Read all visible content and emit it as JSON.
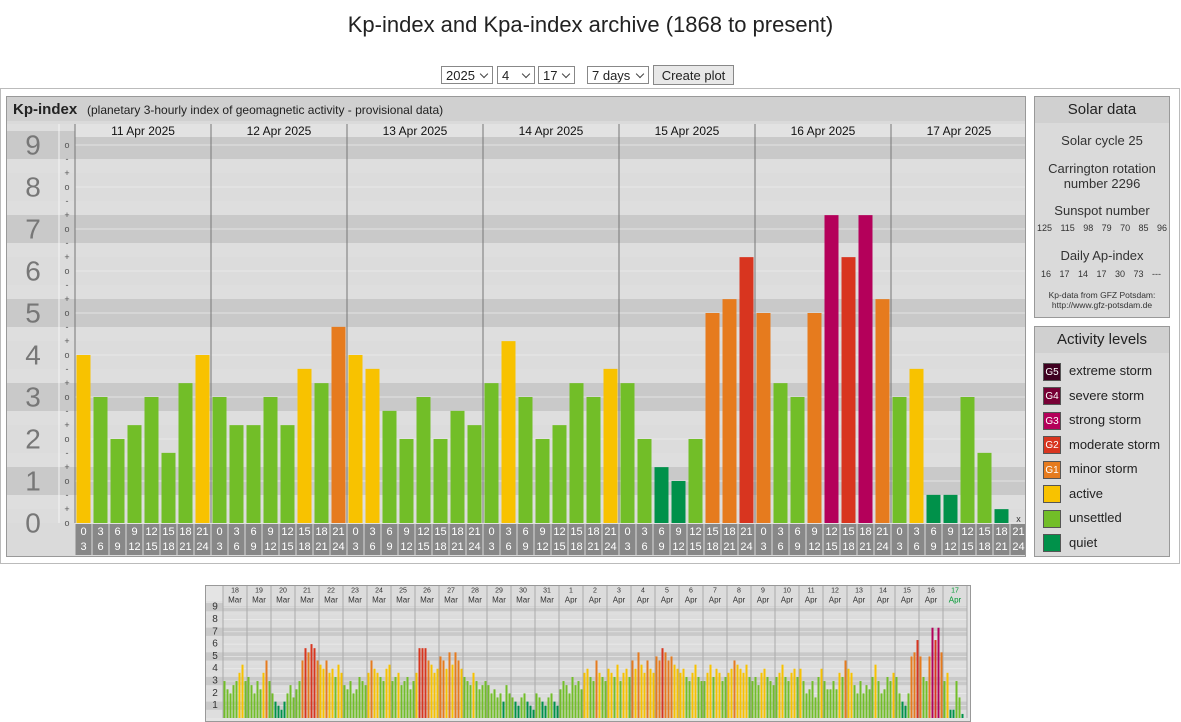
{
  "title": "Kp-index and Kpa-index archive (1868 to present)",
  "controls": {
    "year": "2025",
    "month": "4",
    "day": "17",
    "span": "7 days",
    "button": "Create plot"
  },
  "chart_data": [
    {
      "type": "bar",
      "title": "Kp-index",
      "subtitle": "(planetary 3-hourly index of geomagnetic activity - provisional data)",
      "days": [
        "11 Apr 2025",
        "12 Apr 2025",
        "13 Apr 2025",
        "14 Apr 2025",
        "15 Apr 2025",
        "16 Apr 2025",
        "17 Apr 2025"
      ],
      "hour_labels": [
        [
          "0",
          "3"
        ],
        [
          "3",
          "6"
        ],
        [
          "6",
          "9"
        ],
        [
          "9",
          "12"
        ],
        [
          "12",
          "15"
        ],
        [
          "15",
          "18"
        ],
        [
          "18",
          "21"
        ],
        [
          "21",
          "24"
        ]
      ],
      "values": [
        4,
        3,
        2,
        2.33,
        3,
        1.67,
        3.33,
        4,
        3,
        2.33,
        2.33,
        3,
        2.33,
        3.67,
        3.33,
        4.67,
        4,
        3.67,
        2.67,
        2,
        3,
        2,
        2.67,
        2.33,
        3.33,
        4.33,
        3,
        2,
        2.33,
        3.33,
        3,
        3.67,
        3.33,
        2,
        1.33,
        1,
        2,
        5,
        5.33,
        6.33,
        5,
        3.33,
        3,
        5,
        7.33,
        6.33,
        7.33,
        5.33,
        3,
        3.67,
        0.67,
        0.67,
        3,
        1.67,
        0.33,
        null
      ],
      "colors": [
        "#f8c200",
        "#72be28",
        "#72be28",
        "#72be28",
        "#72be28",
        "#72be28",
        "#72be28",
        "#f8c200",
        "#72be28",
        "#72be28",
        "#72be28",
        "#72be28",
        "#72be28",
        "#f8c200",
        "#72be28",
        "#e67b1e",
        "#f8c200",
        "#f8c200",
        "#72be28",
        "#72be28",
        "#72be28",
        "#72be28",
        "#72be28",
        "#72be28",
        "#72be28",
        "#f8c200",
        "#72be28",
        "#72be28",
        "#72be28",
        "#72be28",
        "#72be28",
        "#f8c200",
        "#72be28",
        "#72be28",
        "#00914a",
        "#00914a",
        "#72be28",
        "#e67b1e",
        "#e67b1e",
        "#d8351f",
        "#e67b1e",
        "#72be28",
        "#72be28",
        "#e67b1e",
        "#b4005a",
        "#d8351f",
        "#b4005a",
        "#e67b1e",
        "#72be28",
        "#f8c200",
        "#00914a",
        "#00914a",
        "#72be28",
        "#72be28",
        "#00914a",
        null
      ],
      "missing_label": "x",
      "ylim": [
        0,
        9.5
      ],
      "yticks": [
        0,
        1,
        2,
        3,
        4,
        5,
        6,
        7,
        8,
        9
      ],
      "minor_tick_labels": [
        "-",
        "o",
        "+"
      ],
      "grid": true
    },
    {
      "type": "bar",
      "days": [
        "18",
        "19",
        "20",
        "21",
        "22",
        "23",
        "24",
        "25",
        "26",
        "27",
        "28",
        "29",
        "30",
        "31",
        "1",
        "2",
        "3",
        "4",
        "5",
        "6",
        "7",
        "8",
        "9",
        "10",
        "11",
        "12",
        "13",
        "14",
        "15",
        "16",
        "17"
      ],
      "months": [
        "Mar",
        "Mar",
        "Mar",
        "Mar",
        "Mar",
        "Mar",
        "Mar",
        "Mar",
        "Mar",
        "Mar",
        "Mar",
        "Mar",
        "Mar",
        "Mar",
        "Apr",
        "Apr",
        "Apr",
        "Apr",
        "Apr",
        "Apr",
        "Apr",
        "Apr",
        "Apr",
        "Apr",
        "Apr",
        "Apr",
        "Apr",
        "Apr",
        "Apr",
        "Apr",
        "Apr"
      ],
      "current_day_color": "#009933",
      "values": [
        3,
        2.33,
        2,
        2.67,
        3,
        3.67,
        4.33,
        3,
        3.33,
        2.67,
        2,
        3,
        2.33,
        3.67,
        4.67,
        3,
        2,
        1.33,
        1,
        0.67,
        1.33,
        2,
        2.67,
        1.67,
        2.33,
        3,
        4.67,
        5.67,
        5.33,
        6,
        5.67,
        4.67,
        4.33,
        4,
        4.67,
        3.67,
        4,
        3.33,
        4.33,
        3.67,
        2.67,
        2.33,
        3,
        2,
        2.33,
        3.33,
        3,
        2.67,
        3.67,
        4.67,
        4,
        3.67,
        3.33,
        3,
        4,
        4.33,
        3,
        3.33,
        3.67,
        2.67,
        3,
        3.33,
        2.33,
        3,
        3.67,
        5.67,
        5.67,
        5.67,
        4.67,
        4.33,
        3.67,
        4,
        5,
        4.67,
        4,
        5.33,
        4.33,
        5.33,
        4.67,
        4,
        3.33,
        3,
        2.67,
        3.67,
        3,
        2.33,
        2.67,
        3,
        2.67,
        2,
        2.33,
        1.67,
        2,
        1.33,
        2.67,
        2,
        1.67,
        1.33,
        1,
        1.67,
        2,
        1.33,
        1,
        0.67,
        2,
        1.67,
        1.33,
        1,
        1.67,
        2,
        1.33,
        1,
        2.33,
        3,
        2.67,
        2,
        3.33,
        2.67,
        3,
        2.33,
        3.67,
        4,
        3.33,
        3,
        4.67,
        3.67,
        3.33,
        3,
        4,
        3.67,
        3.33,
        4.33,
        3,
        3.67,
        4,
        3.33,
        4.67,
        4,
        5.33,
        4.33,
        3.67,
        4.67,
        4,
        3.67,
        5,
        4.67,
        5.67,
        5.33,
        4.67,
        5,
        4.33,
        4,
        3.67,
        4,
        3.33,
        3,
        3.67,
        4.33,
        3.33,
        3,
        3,
        3.67,
        4.33,
        3.33,
        4,
        3.67,
        3,
        3.33,
        3.67,
        4,
        4.67,
        4.33,
        4,
        3.67,
        4.33,
        3.33,
        3,
        3.33,
        2.67,
        3.67,
        4,
        3.33,
        3,
        2.67,
        3.33,
        3.67,
        4.33,
        3.33,
        3,
        3.67,
        4,
        3.33,
        4,
        3,
        2,
        2.33,
        3,
        1.67,
        3.33,
        4,
        3,
        2.33,
        2.33,
        3,
        2.33,
        3.67,
        3.33,
        4.67,
        4,
        3.67,
        2.67,
        2,
        3,
        2,
        2.67,
        2.33,
        3.33,
        4.33,
        3,
        2,
        2.33,
        3.33,
        3,
        3.67,
        3.33,
        2,
        1.33,
        1,
        2,
        5,
        5.33,
        6.33,
        5,
        3.33,
        3,
        5,
        7.33,
        6.33,
        7.33,
        5.33,
        3,
        3.67,
        0.67,
        0.67,
        3,
        1.67,
        0.33,
        null
      ],
      "colors": [
        "#72be28",
        "#72be28",
        "#72be28",
        "#72be28",
        "#72be28",
        "#f8c200",
        "#f8c200",
        "#72be28",
        "#72be28",
        "#72be28",
        "#72be28",
        "#72be28",
        "#72be28",
        "#f8c200",
        "#e67b1e",
        "#72be28",
        "#72be28",
        "#00914a",
        "#00914a",
        "#00914a",
        "#00914a",
        "#72be28",
        "#72be28",
        "#72be28",
        "#72be28",
        "#72be28",
        "#e67b1e",
        "#d8351f",
        "#e67b1e",
        "#d8351f",
        "#d8351f",
        "#e67b1e",
        "#f8c200",
        "#f8c200",
        "#e67b1e",
        "#f8c200",
        "#f8c200",
        "#72be28",
        "#f8c200",
        "#f8c200",
        "#72be28",
        "#72be28",
        "#72be28",
        "#72be28",
        "#72be28",
        "#72be28",
        "#72be28",
        "#72be28",
        "#f8c200",
        "#e67b1e",
        "#f8c200",
        "#f8c200",
        "#72be28",
        "#72be28",
        "#f8c200",
        "#f8c200",
        "#72be28",
        "#72be28",
        "#f8c200",
        "#72be28",
        "#72be28",
        "#72be28",
        "#72be28",
        "#72be28",
        "#f8c200",
        "#d8351f",
        "#d8351f",
        "#d8351f",
        "#e67b1e",
        "#f8c200",
        "#f8c200",
        "#f8c200",
        "#e67b1e",
        "#e67b1e",
        "#f8c200",
        "#e67b1e",
        "#f8c200",
        "#e67b1e",
        "#e67b1e",
        "#f8c200",
        "#72be28",
        "#72be28",
        "#72be28",
        "#f8c200",
        "#72be28",
        "#72be28",
        "#72be28",
        "#72be28",
        "#72be28",
        "#72be28",
        "#72be28",
        "#72be28",
        "#72be28",
        "#00914a",
        "#72be28",
        "#72be28",
        "#72be28",
        "#00914a",
        "#00914a",
        "#72be28",
        "#72be28",
        "#00914a",
        "#00914a",
        "#00914a",
        "#72be28",
        "#72be28",
        "#00914a",
        "#00914a",
        "#72be28",
        "#72be28",
        "#00914a",
        "#00914a",
        "#72be28",
        "#72be28",
        "#72be28",
        "#72be28",
        "#72be28",
        "#72be28",
        "#72be28",
        "#72be28",
        "#f8c200",
        "#f8c200",
        "#72be28",
        "#72be28",
        "#e67b1e",
        "#f8c200",
        "#72be28",
        "#72be28",
        "#f8c200",
        "#f8c200",
        "#72be28",
        "#f8c200",
        "#72be28",
        "#f8c200",
        "#f8c200",
        "#72be28",
        "#e67b1e",
        "#f8c200",
        "#e67b1e",
        "#f8c200",
        "#f8c200",
        "#e67b1e",
        "#f8c200",
        "#f8c200",
        "#e67b1e",
        "#e67b1e",
        "#d8351f",
        "#e67b1e",
        "#e67b1e",
        "#e67b1e",
        "#f8c200",
        "#f8c200",
        "#f8c200",
        "#f8c200",
        "#72be28",
        "#72be28",
        "#f8c200",
        "#f8c200",
        "#72be28",
        "#72be28",
        "#72be28",
        "#f8c200",
        "#f8c200",
        "#72be28",
        "#f8c200",
        "#f8c200",
        "#72be28",
        "#72be28",
        "#f8c200",
        "#f8c200",
        "#e67b1e",
        "#f8c200",
        "#f8c200",
        "#f8c200",
        "#f8c200",
        "#72be28",
        "#72be28",
        "#72be28",
        "#72be28",
        "#f8c200",
        "#f8c200",
        "#72be28",
        "#72be28",
        "#72be28",
        "#72be28",
        "#f8c200",
        "#f8c200",
        "#72be28",
        "#72be28",
        "#f8c200",
        "#f8c200",
        "#72be28",
        "#f8c200",
        "#72be28",
        "#72be28",
        "#72be28",
        "#72be28",
        "#72be28",
        "#72be28",
        "#f8c200",
        "#72be28",
        "#72be28",
        "#72be28",
        "#72be28",
        "#72be28",
        "#f8c200",
        "#72be28",
        "#e67b1e",
        "#f8c200",
        "#f8c200",
        "#72be28",
        "#72be28",
        "#72be28",
        "#72be28",
        "#72be28",
        "#72be28",
        "#72be28",
        "#f8c200",
        "#72be28",
        "#72be28",
        "#72be28",
        "#72be28",
        "#72be28",
        "#f8c200",
        "#72be28",
        "#72be28",
        "#00914a",
        "#00914a",
        "#72be28",
        "#e67b1e",
        "#e67b1e",
        "#d8351f",
        "#e67b1e",
        "#72be28",
        "#72be28",
        "#e67b1e",
        "#b4005a",
        "#d8351f",
        "#b4005a",
        "#e67b1e",
        "#72be28",
        "#f8c200",
        "#00914a",
        "#00914a",
        "#72be28",
        "#72be28",
        "#00914a",
        null
      ],
      "ylim": [
        0,
        9.5
      ],
      "yticks": [
        1,
        2,
        3,
        4,
        5,
        6,
        7,
        8,
        9
      ],
      "grid": true
    }
  ],
  "solar_data": {
    "title": "Solar data",
    "cycle": "Solar cycle 25",
    "carrington": "Carrington rotation number 2296",
    "sunspot_title": "Sunspot number",
    "sunspot": [
      125,
      115,
      98,
      79,
      70,
      85,
      96
    ],
    "ap_title": "Daily Ap-index",
    "ap": [
      16,
      17,
      14,
      17,
      30,
      73,
      "---"
    ],
    "source": "Kp-data from  GFZ Potsdam:",
    "url": "http://www.gfz-potsdam.de"
  },
  "activity_levels": {
    "title": "Activity levels",
    "items": [
      {
        "code": "G5",
        "label": "extreme storm",
        "color": "#3f0020"
      },
      {
        "code": "G4",
        "label": "severe storm",
        "color": "#770035"
      },
      {
        "code": "G3",
        "label": "strong storm",
        "color": "#b4005a"
      },
      {
        "code": "G2",
        "label": "moderate storm",
        "color": "#d8351f"
      },
      {
        "code": "G1",
        "label": "minor storm",
        "color": "#e67b1e"
      },
      {
        "label": "active",
        "color": "#f8c200"
      },
      {
        "label": "unsettled",
        "color": "#72be28"
      },
      {
        "label": "quiet",
        "color": "#00914a"
      }
    ]
  }
}
